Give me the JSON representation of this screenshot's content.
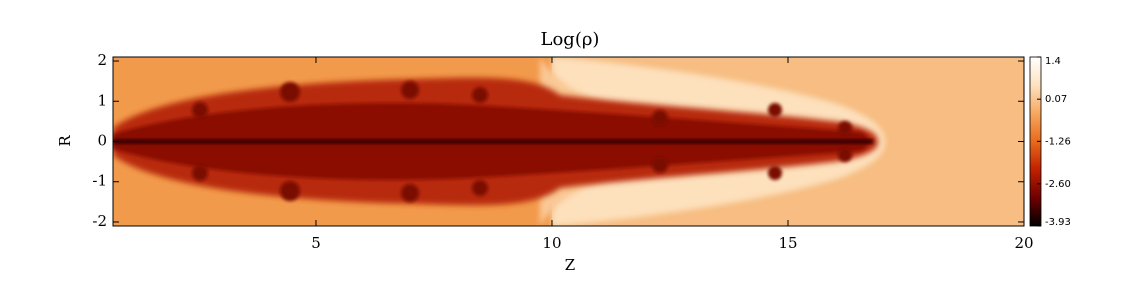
{
  "chart_data": {
    "type": "heatmap",
    "title": "Log(ρ)",
    "xlabel": "Z",
    "ylabel": "R",
    "xlim": [
      0.7,
      20
    ],
    "ylim": [
      -2.1,
      2.1
    ],
    "xticks": [
      5,
      10,
      15,
      20
    ],
    "yticks": [
      -2,
      -1,
      0,
      1,
      2
    ],
    "colorbar": {
      "lim": [
        -3.93,
        1.4
      ],
      "ticks": [
        1.4,
        0.07,
        -1.26,
        {
          "value": -2.6,
          "label": "-2.60"
        },
        -3.93
      ],
      "colors": [
        "#000000",
        "#6e0000",
        "#c02000",
        "#e86a1c",
        "#f6a860",
        "#fde2c0",
        "#ffffff"
      ]
    }
  }
}
